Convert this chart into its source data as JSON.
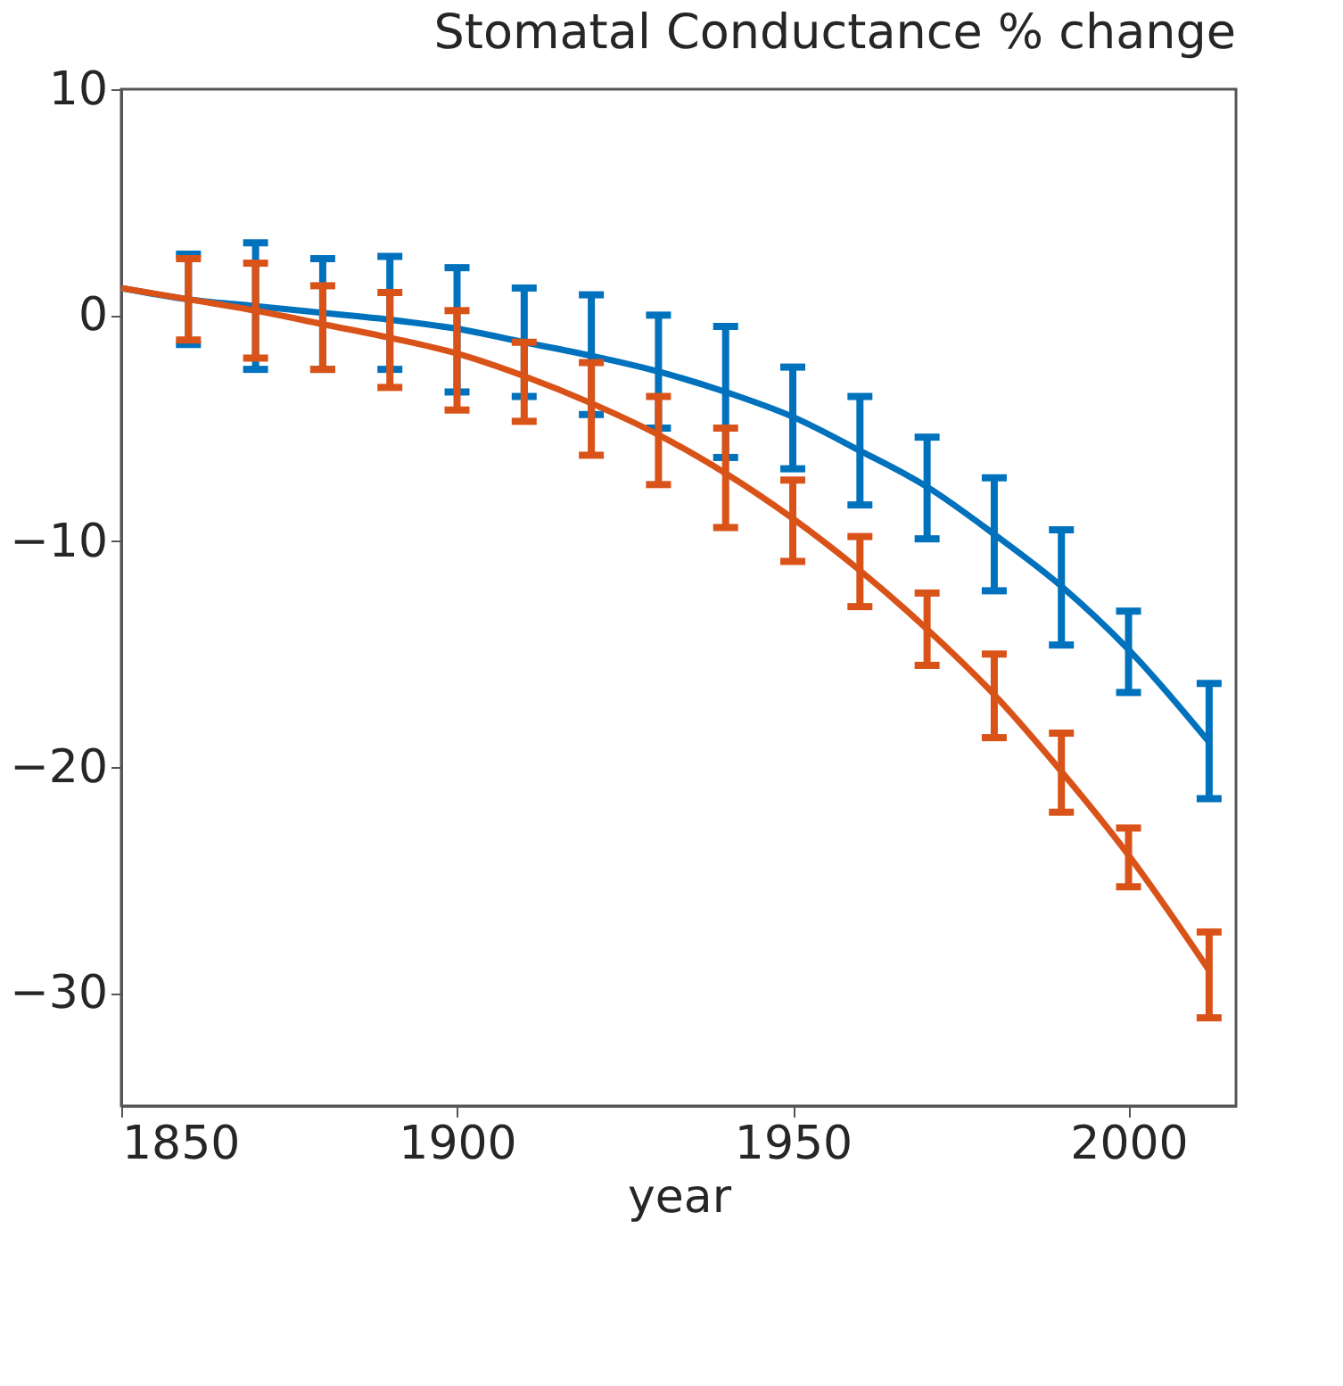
{
  "chart_data": {
    "type": "line",
    "title": "Stomatal Conductance % change",
    "xlabel": "year",
    "x": [
      1850,
      1860,
      1870,
      1880,
      1890,
      1900,
      1910,
      1920,
      1930,
      1940,
      1950,
      1960,
      1970,
      1980,
      1990,
      2000,
      2012
    ],
    "series": [
      {
        "color": "#0072bd",
        "values": [
          1.2,
          0.7,
          0.4,
          0.1,
          -0.2,
          -0.6,
          -1.2,
          -1.8,
          -2.5,
          -3.4,
          -4.5,
          -6.0,
          -7.6,
          -9.7,
          -12.0,
          -14.8,
          -18.9
        ],
        "errors": [
          null,
          [
            -1.3,
            2.7
          ],
          [
            -2.4,
            3.2
          ],
          [
            -2.4,
            2.5
          ],
          [
            -2.4,
            2.6
          ],
          [
            -3.4,
            2.1
          ],
          [
            -3.6,
            1.2
          ],
          [
            -4.4,
            0.9
          ],
          [
            -5.0,
            0.0
          ],
          [
            -6.3,
            -0.5
          ],
          [
            -6.8,
            -2.3
          ],
          [
            -8.4,
            -3.6
          ],
          [
            -9.9,
            -5.4
          ],
          [
            -12.2,
            -7.2
          ],
          [
            -14.6,
            -9.5
          ],
          [
            -16.7,
            -13.1
          ],
          [
            -21.4,
            -16.3
          ]
        ]
      },
      {
        "color": "#d95319",
        "values": [
          1.2,
          0.7,
          0.2,
          -0.4,
          -1.0,
          -1.7,
          -2.7,
          -3.9,
          -5.3,
          -7.0,
          -9.0,
          -11.3,
          -13.9,
          -16.8,
          -20.2,
          -23.9,
          -29.0
        ],
        "errors": [
          null,
          [
            -1.1,
            2.5
          ],
          [
            -1.9,
            2.3
          ],
          [
            -2.4,
            1.3
          ],
          [
            -3.2,
            1.0
          ],
          [
            -4.2,
            0.2
          ],
          [
            -4.7,
            -1.2
          ],
          [
            -6.2,
            -2.1
          ],
          [
            -7.5,
            -3.6
          ],
          [
            -9.4,
            -5.0
          ],
          [
            -10.9,
            -7.3
          ],
          [
            -12.9,
            -9.8
          ],
          [
            -15.5,
            -12.3
          ],
          [
            -18.7,
            -15.0
          ],
          [
            -22.0,
            -18.5
          ],
          [
            -25.3,
            -22.7
          ],
          [
            -31.1,
            -27.3
          ]
        ]
      }
    ],
    "xlim": [
      1850,
      2016
    ],
    "xticks": [
      1850,
      1900,
      1950,
      2000
    ],
    "ylim": [
      -35,
      10
    ],
    "yticks": [
      -30,
      -20,
      -10,
      0,
      10
    ],
    "grid": false,
    "marker": "none",
    "line_style": "solid"
  }
}
